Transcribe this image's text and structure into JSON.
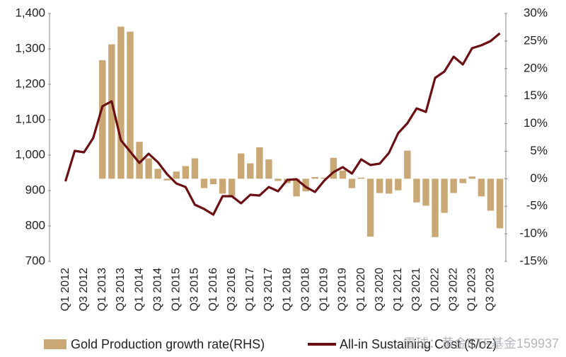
{
  "chart_data": {
    "type": "bar_line",
    "categories": [
      "Q1 2012",
      null,
      "Q3 2012",
      null,
      "Q1 2013",
      null,
      "Q3 2013",
      null,
      "Q1 2014",
      null,
      "Q3 2014",
      null,
      "Q1 2015",
      null,
      "Q3 2015",
      null,
      "Q1 2016",
      null,
      "Q3 2016",
      null,
      "Q1 2017",
      null,
      "Q3 2017",
      null,
      "Q1 2018",
      null,
      "Q3 2018",
      null,
      "Q1 2019",
      null,
      "Q3 2019",
      null,
      "Q1 2020",
      null,
      "Q3 2020",
      null,
      "Q1 2021",
      null,
      "Q3 2021",
      null,
      "Q1 2022",
      null,
      "Q3 2022",
      null,
      "Q1 2023",
      null,
      "Q3 2023",
      null
    ],
    "series": [
      {
        "name": "Gold Production growth rate(RHS)",
        "color": "#c9a875",
        "axis": "y2",
        "kind": "bar",
        "values": [
          0,
          0,
          0,
          0,
          21.5,
          24.4,
          27.6,
          26.7,
          6.7,
          3.7,
          1.8,
          -0.3,
          1.3,
          2.3,
          3.7,
          -1.7,
          -1.0,
          -2.7,
          -3.2,
          4.6,
          2.8,
          5.7,
          3.5,
          -0.4,
          -0.8,
          -3.2,
          -2.3,
          0.3,
          0.2,
          3.8,
          1.5,
          -1.7,
          0.2,
          -10.5,
          -2.6,
          -2.7,
          -2.1,
          5.1,
          -4.3,
          -4.9,
          -10.6,
          -6.2,
          -2.6,
          -0.8,
          0.4,
          -3.2,
          -5.8,
          -9.0
        ]
      },
      {
        "name": "All-in Sustaining Cost ($/oz)",
        "color": "#6b0f12",
        "axis": "y",
        "kind": "line",
        "values": [
          926,
          1012,
          1008,
          1048,
          1138,
          1152,
          1042,
          1010,
          978,
          1004,
          980,
          946,
          920,
          910,
          860,
          848,
          832,
          884,
          884,
          864,
          888,
          886,
          910,
          898,
          930,
          932,
          910,
          896,
          928,
          952,
          966,
          948,
          988,
          972,
          976,
          1006,
          1062,
          1090,
          1132,
          1122,
          1218,
          1236,
          1278,
          1256,
          1302,
          1310,
          1322,
          1344
        ]
      }
    ],
    "ylim": [
      700,
      1400
    ],
    "yticks": [
      700,
      800,
      900,
      {
        "value": 1000,
        "label": "1,000"
      },
      {
        "value": 1100,
        "label": "1,100"
      },
      {
        "value": 1200,
        "label": "1,200"
      },
      {
        "value": 1300,
        "label": "1,300"
      },
      {
        "value": 1400,
        "label": "1,400"
      }
    ],
    "y2lim": [
      -15,
      30
    ],
    "y2ticks": [
      {
        "value": -15,
        "label": "-15%"
      },
      {
        "value": -10,
        "label": "-10%"
      },
      {
        "value": -5,
        "label": "-5%"
      },
      {
        "value": 0,
        "label": "0%"
      },
      {
        "value": 5,
        "label": "5%"
      },
      {
        "value": 10,
        "label": "10%"
      },
      {
        "value": 15,
        "label": "15%"
      },
      {
        "value": 20,
        "label": "20%"
      },
      {
        "value": 25,
        "label": "25%"
      },
      {
        "value": 30,
        "label": "30%"
      }
    ],
    "legend": "bottom",
    "watermark": "雪球：黄金ETF基金159937"
  }
}
